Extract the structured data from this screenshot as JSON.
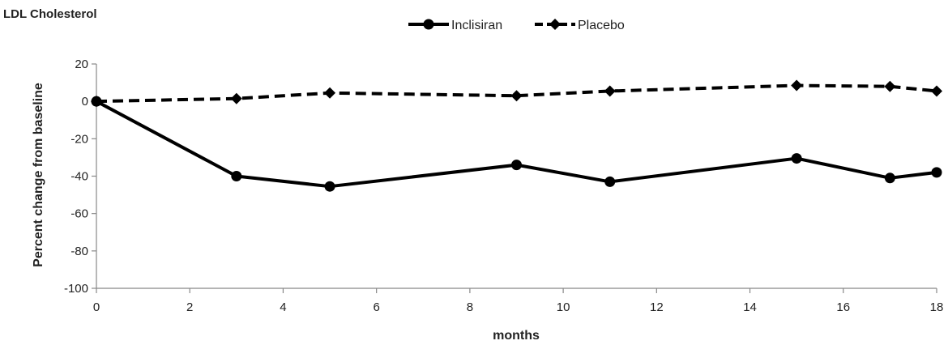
{
  "chart_data": {
    "type": "line",
    "title": "LDL Cholesterol",
    "xlabel": "months",
    "ylabel": "Percent change from baseline",
    "xlim": [
      0,
      18
    ],
    "ylim": [
      -100,
      20
    ],
    "xticks": [
      0,
      2,
      4,
      6,
      8,
      10,
      12,
      14,
      16,
      18
    ],
    "yticks": [
      20,
      0,
      -20,
      -40,
      -60,
      -80,
      -100
    ],
    "grid": false,
    "legend_position": "top-center",
    "series": [
      {
        "name": "Inclisiran",
        "line_style": "solid",
        "marker": "circle",
        "color": "#000000",
        "x": [
          0,
          3,
          5,
          9,
          11,
          15,
          17,
          18
        ],
        "y": [
          0,
          -40,
          -45.5,
          -34,
          -43,
          -30.5,
          -41,
          -38
        ]
      },
      {
        "name": "Placebo",
        "line_style": "dashed",
        "marker": "diamond",
        "color": "#000000",
        "x": [
          0,
          3,
          5,
          9,
          11,
          15,
          17,
          18
        ],
        "y": [
          0,
          1.5,
          4.5,
          3,
          5.5,
          8.5,
          8,
          5.5
        ]
      }
    ]
  }
}
